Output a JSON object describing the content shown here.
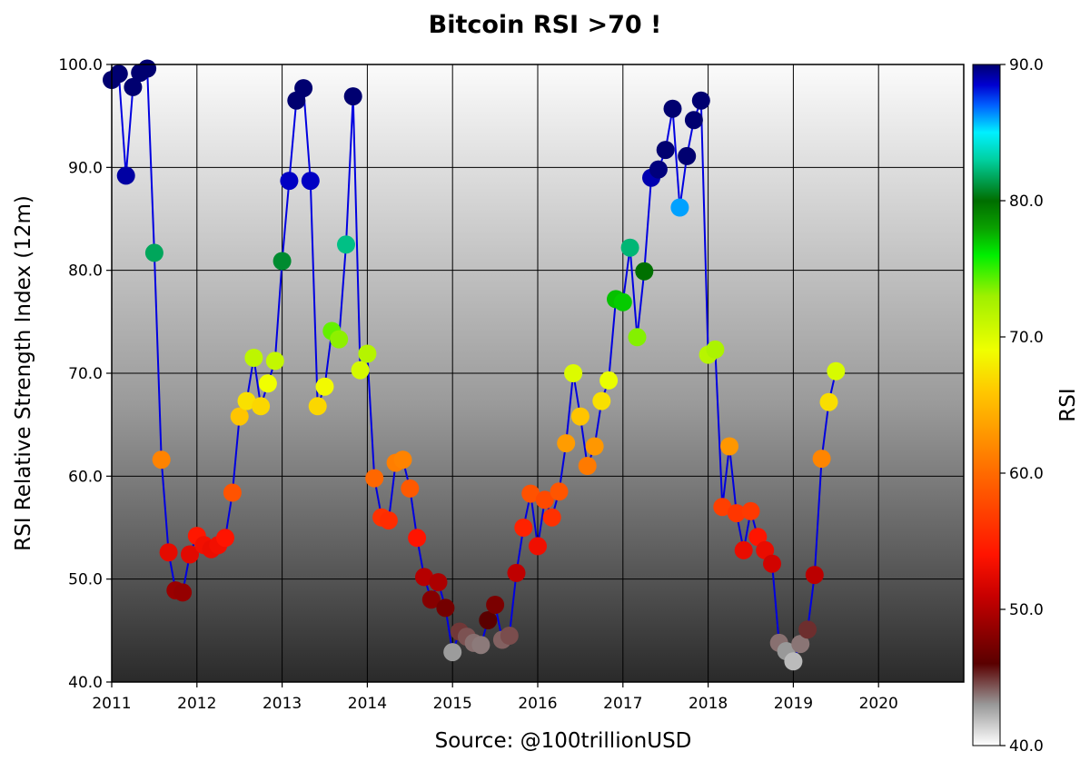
{
  "chart_data": {
    "type": "scatter",
    "title": "Bitcoin RSI >70 !",
    "xlabel": "Source: @100trillionUSD",
    "ylabel": "RSI Relative Strength Index (12m)",
    "xlim": [
      2011,
      2021
    ],
    "ylim": [
      40,
      100
    ],
    "x_ticks": [
      "2011",
      "2012",
      "2013",
      "2014",
      "2015",
      "2016",
      "2017",
      "2018",
      "2019",
      "2020"
    ],
    "y_ticks": [
      "40.0",
      "50.0",
      "60.0",
      "70.0",
      "80.0",
      "90.0",
      "100.0"
    ],
    "grid": true,
    "line_color": "#0000e0",
    "colorbar": {
      "label": "RSI",
      "range": [
        40,
        90
      ],
      "ticks": [
        "40.0",
        "50.0",
        "60.0",
        "70.0",
        "80.0",
        "90.0"
      ],
      "colormap": "white-grey-darkred-red-orange-yellow-green-darkgreen-cyan-blue-navy"
    },
    "series": [
      {
        "x": [
          2011.0,
          2011.083,
          2011.167,
          2011.25,
          2011.333,
          2011.417,
          2011.5,
          2011.583,
          2011.667,
          2011.75,
          2011.833,
          2011.917,
          2012.0,
          2012.083,
          2012.167,
          2012.25,
          2012.333,
          2012.417,
          2012.5,
          2012.583,
          2012.667,
          2012.75,
          2012.833,
          2012.917,
          2013.0,
          2013.083,
          2013.167,
          2013.25,
          2013.333,
          2013.417,
          2013.5,
          2013.583,
          2013.667,
          2013.75,
          2013.833,
          2013.917,
          2014.0,
          2014.083,
          2014.167,
          2014.25,
          2014.333,
          2014.417,
          2014.5,
          2014.583,
          2014.667,
          2014.75,
          2014.833,
          2014.917,
          2015.0,
          2015.083,
          2015.167,
          2015.25,
          2015.333,
          2015.417,
          2015.5,
          2015.583,
          2015.667,
          2015.75,
          2015.833,
          2015.917,
          2016.0,
          2016.083,
          2016.167,
          2016.25,
          2016.333,
          2016.417,
          2016.5,
          2016.583,
          2016.667,
          2016.75,
          2016.833,
          2016.917,
          2017.0,
          2017.083,
          2017.167,
          2017.25,
          2017.333,
          2017.417,
          2017.5,
          2017.583,
          2017.667,
          2017.75,
          2017.833,
          2017.917,
          2018.0,
          2018.083,
          2018.167,
          2018.25,
          2018.333,
          2018.417,
          2018.5,
          2018.583,
          2018.667,
          2018.75,
          2018.833,
          2018.917,
          2019.0,
          2019.083,
          2019.167,
          2019.25,
          2019.333,
          2019.417,
          2019.5
        ],
        "y": [
          98.5,
          99.1,
          89.2,
          97.8,
          99.2,
          99.6,
          81.7,
          61.6,
          52.6,
          48.9,
          48.7,
          52.4,
          54.2,
          53.3,
          52.9,
          53.3,
          54.0,
          58.4,
          65.8,
          67.3,
          71.5,
          66.8,
          69.0,
          71.2,
          80.9,
          88.7,
          96.5,
          97.7,
          88.7,
          66.8,
          68.7,
          74.1,
          73.3,
          82.5,
          96.9,
          70.3,
          71.9,
          59.8,
          56.0,
          55.7,
          61.3,
          61.6,
          58.8,
          54.0,
          50.2,
          48.0,
          49.7,
          47.2,
          42.9,
          44.9,
          44.4,
          43.8,
          43.6,
          46.0,
          47.5,
          44.1,
          44.5,
          50.6,
          55.0,
          58.3,
          53.2,
          57.7,
          56.0,
          58.5,
          63.2,
          70.0,
          65.8,
          61.0,
          62.9,
          67.3,
          69.3,
          77.2,
          76.9,
          82.2,
          73.5,
          79.9,
          89.0,
          89.8,
          91.7,
          95.7,
          86.1,
          91.1,
          94.6,
          96.5,
          71.8,
          72.3,
          57.0,
          62.9,
          56.4,
          52.8,
          56.6,
          54.1,
          52.8,
          51.5,
          43.8,
          43.0,
          42.0,
          43.7,
          45.1,
          50.4,
          61.7,
          67.2,
          70.2
        ]
      }
    ]
  }
}
